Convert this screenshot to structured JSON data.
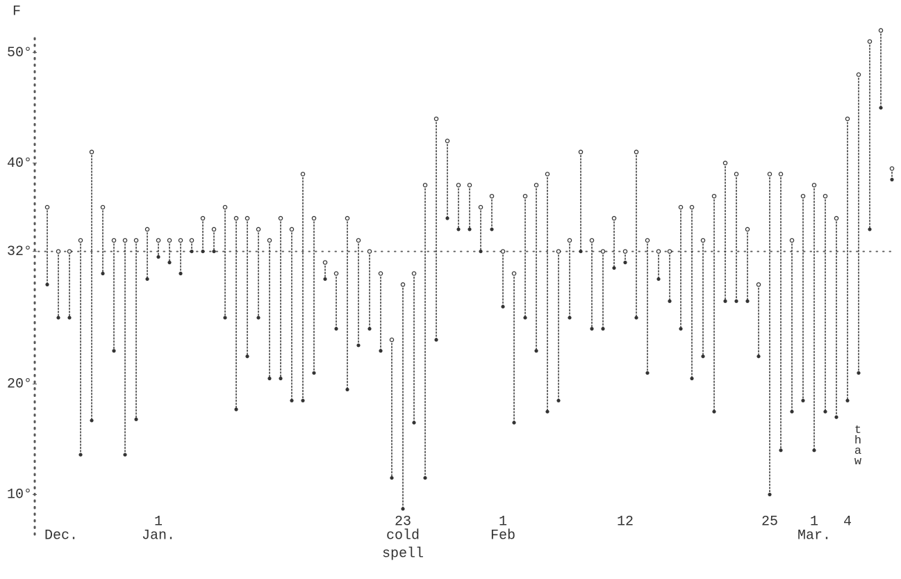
{
  "chart_data": {
    "type": "range",
    "unit_label": "F",
    "categories": [
      null,
      null,
      null,
      null,
      null,
      null,
      null,
      null,
      null,
      null,
      "1",
      null,
      null,
      null,
      null,
      null,
      null,
      null,
      null,
      null,
      null,
      null,
      null,
      null,
      null,
      null,
      null,
      null,
      null,
      null,
      null,
      null,
      "23",
      null,
      null,
      null,
      null,
      null,
      null,
      null,
      null,
      "1",
      null,
      null,
      null,
      null,
      null,
      null,
      null,
      null,
      null,
      null,
      "12",
      null,
      null,
      null,
      null,
      null,
      null,
      null,
      null,
      null,
      null,
      null,
      null,
      "25",
      null,
      null,
      null,
      "1",
      null,
      null,
      "4",
      null,
      null,
      null,
      null
    ],
    "series": [
      {
        "color": "#333333",
        "values": [
          36,
          32,
          32,
          33,
          41,
          36,
          33,
          33,
          33,
          34,
          33,
          33,
          33,
          33,
          35,
          34,
          36,
          35,
          35,
          34,
          33,
          35,
          34,
          39,
          35,
          31,
          30,
          35,
          33,
          32,
          30,
          24,
          29,
          30,
          38,
          44,
          42,
          38,
          38,
          36,
          37,
          32,
          30,
          37,
          38,
          39,
          32,
          33,
          41,
          33,
          32,
          35,
          32,
          41,
          33,
          32,
          32,
          36,
          36,
          33,
          37,
          40,
          39,
          34,
          29,
          39,
          39,
          33,
          37,
          38,
          37,
          35,
          44,
          48,
          51,
          52,
          39.5
        ]
      },
      {
        "color": "#333333",
        "values": [
          29,
          26,
          26,
          13.6,
          16.7,
          30,
          23,
          13.6,
          16.8,
          29.5,
          31.5,
          31,
          30,
          32,
          32,
          32,
          26,
          17.7,
          22.5,
          26,
          20.5,
          20.5,
          18.5,
          18.5,
          21,
          29.5,
          25,
          19.5,
          23.5,
          25,
          23,
          11.5,
          8.7,
          16.5,
          11.5,
          24,
          35,
          34,
          34,
          32,
          34,
          27,
          16.5,
          26,
          23,
          17.5,
          18.5,
          26,
          32,
          25,
          25,
          30.5,
          31,
          26,
          21,
          29.5,
          27.5,
          25,
          20.5,
          22.5,
          17.5,
          27.5,
          27.5,
          27.5,
          22.5,
          10,
          14,
          17.5,
          18.5,
          14,
          17.5,
          17,
          18.5,
          21,
          34,
          45,
          38.5
        ]
      }
    ],
    "reference_y": 32,
    "annotations": [
      {
        "text": "Dec.",
        "category": 0
      },
      {
        "text": "Jan.",
        "category": 10
      },
      {
        "text": "cold",
        "category": 32
      },
      {
        "text": "spell",
        "category": 32
      },
      {
        "text": "Feb",
        "category": 41
      },
      {
        "text": "Mar.",
        "category": 69
      }
    ],
    "vertical_annotation": {
      "text": "thaw",
      "category": 73
    },
    "ylim": [
      6,
      54
    ],
    "yticks": [
      {
        "value": 10,
        "label": "10°"
      },
      {
        "value": 20,
        "label": "20°"
      },
      {
        "value": 32,
        "label": "32°"
      },
      {
        "value": 40,
        "label": "40°"
      },
      {
        "value": 50,
        "label": "50°"
      }
    ]
  }
}
